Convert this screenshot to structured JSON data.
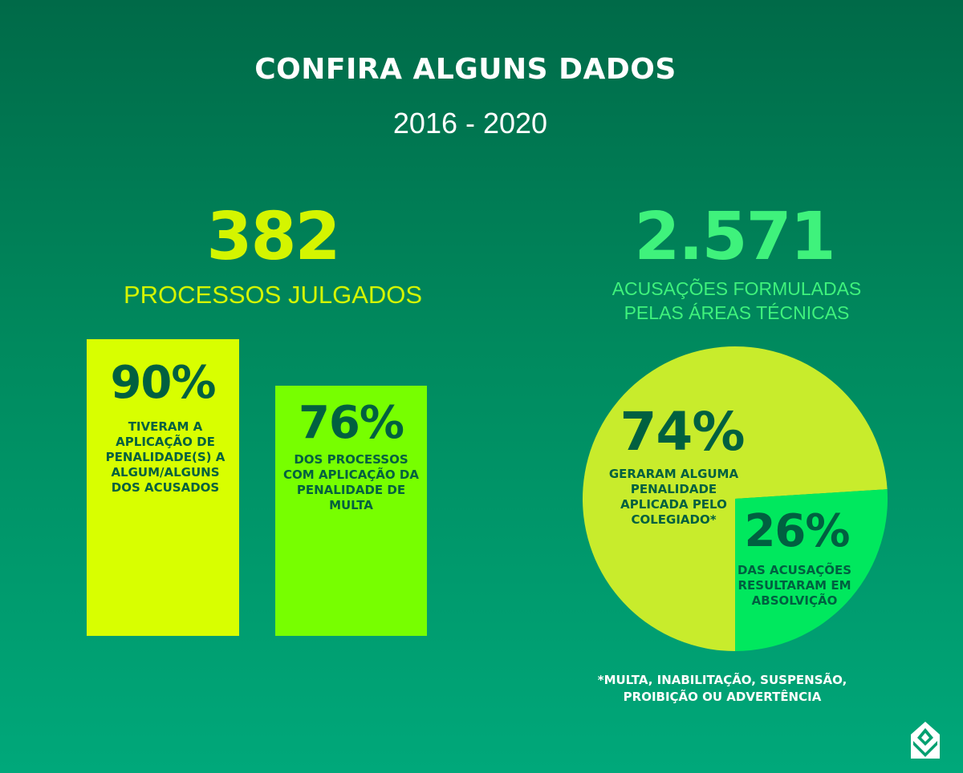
{
  "header": {
    "title": "CONFIRA ALGUNS DADOS",
    "years": "2016 - 2020"
  },
  "left": {
    "number": "382",
    "label": "PROCESSOS JULGADOS"
  },
  "right": {
    "number": "2.571",
    "label_line1": "ACUSAÇÕES FORMULADAS",
    "label_line2": "PELAS ÁREAS TÉCNICAS"
  },
  "footnote": {
    "line1": "*MULTA, INABILITAÇÃO, SUSPENSÃO,",
    "line2": "PROIBIÇÃO OU ADVERTÊNCIA"
  },
  "logo_icon": "house-chevron-logo",
  "chart_data": [
    {
      "type": "bar",
      "categories": [
        "TIVERAM A APLICAÇÃO DE PENALIDADE(S) A ALGUM/ALGUNS DOS ACUSADOS",
        "DOS PROCESSOS COM APLICAÇÃO DA PENALIDADE DE MULTA"
      ],
      "values": [
        90,
        76
      ],
      "labels": [
        "90%",
        "76%"
      ],
      "colors": [
        "#d8ff00",
        "#77ff00"
      ]
    },
    {
      "type": "pie",
      "categories": [
        "GERARAM ALGUMA PENALIDADE APLICADA PELO COLEGIADO*",
        "DAS ACUSAÇÕES RESULTARAM EM ABSOLVIÇÃO"
      ],
      "values": [
        74,
        26
      ],
      "labels": [
        "74%",
        "26%"
      ],
      "colors": [
        "#c8ec2c",
        "#00e85e"
      ]
    }
  ]
}
